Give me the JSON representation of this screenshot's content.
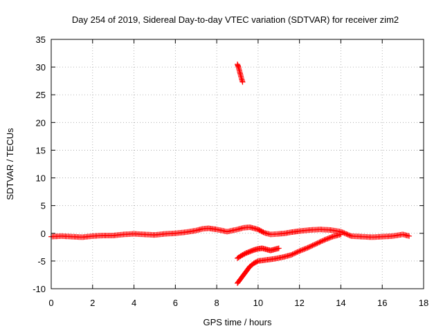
{
  "chart_data": {
    "type": "scatter",
    "title": "Day 254 of 2019, Sidereal Day-to-day VTEC variation (SDTVAR) for receiver zim2",
    "xlabel": "GPS time / hours",
    "ylabel": "SDTVAR / TECUs",
    "xlim": [
      0,
      18
    ],
    "ylim": [
      -10,
      35
    ],
    "xticks": [
      0,
      2,
      4,
      6,
      8,
      10,
      12,
      14,
      16,
      18
    ],
    "yticks": [
      -10,
      -5,
      0,
      5,
      10,
      15,
      20,
      25,
      30,
      35
    ],
    "xtick_labels": [
      "0",
      "2",
      "4",
      "6",
      "8",
      "10",
      "12",
      "14",
      "16",
      "18"
    ],
    "ytick_labels": [
      "-10",
      "-5",
      "0",
      "5",
      "10",
      "15",
      "20",
      "25",
      "30",
      "35"
    ],
    "grid": true,
    "marker": "+",
    "color": "#ff0000",
    "series": [
      {
        "name": "main",
        "x": [
          0.0,
          0.5,
          1.0,
          1.5,
          2.0,
          2.5,
          3.0,
          3.5,
          4.0,
          4.5,
          5.0,
          5.5,
          6.0,
          6.5,
          7.0,
          7.3,
          7.6,
          8.0,
          8.5,
          9.0,
          9.3,
          9.6,
          10.0,
          10.3,
          10.6,
          11.0,
          11.3,
          11.6,
          12.0,
          12.5,
          13.0,
          13.5,
          14.0,
          14.5,
          15.0,
          15.5,
          16.0,
          16.5,
          17.0,
          17.3
        ],
        "y": [
          -0.6,
          -0.5,
          -0.6,
          -0.7,
          -0.5,
          -0.4,
          -0.4,
          -0.2,
          -0.1,
          -0.2,
          -0.3,
          -0.1,
          0.0,
          0.2,
          0.5,
          0.8,
          0.9,
          0.7,
          0.3,
          0.7,
          1.0,
          1.1,
          0.7,
          0.1,
          -0.2,
          -0.1,
          0.0,
          0.2,
          0.4,
          0.6,
          0.7,
          0.6,
          0.3,
          -0.5,
          -0.6,
          -0.7,
          -0.6,
          -0.5,
          -0.2,
          -0.5
        ]
      },
      {
        "name": "upper-arc",
        "x": [
          9.0,
          9.2,
          9.4,
          9.6,
          9.8,
          10.0,
          10.2,
          10.4,
          10.6,
          10.8,
          11.0
        ],
        "y": [
          -4.5,
          -4.0,
          -3.6,
          -3.3,
          -3.0,
          -2.8,
          -2.7,
          -2.9,
          -3.1,
          -2.9,
          -2.7
        ]
      },
      {
        "name": "lower-curve",
        "x": [
          9.0,
          9.2,
          9.4,
          9.6,
          9.8,
          10.0,
          10.4,
          10.8,
          11.2,
          11.6,
          12.0,
          12.4,
          12.8,
          13.2,
          13.6,
          14.0
        ],
        "y": [
          -9.0,
          -8.0,
          -7.0,
          -6.0,
          -5.4,
          -5.0,
          -4.8,
          -4.6,
          -4.3,
          -3.9,
          -3.2,
          -2.6,
          -1.9,
          -1.2,
          -0.6,
          -0.2
        ]
      },
      {
        "name": "spike",
        "x": [
          9.0,
          9.05,
          9.1,
          9.15,
          9.2,
          9.25
        ],
        "y": [
          30.5,
          30.0,
          29.3,
          28.6,
          27.9,
          27.3
        ]
      }
    ]
  }
}
